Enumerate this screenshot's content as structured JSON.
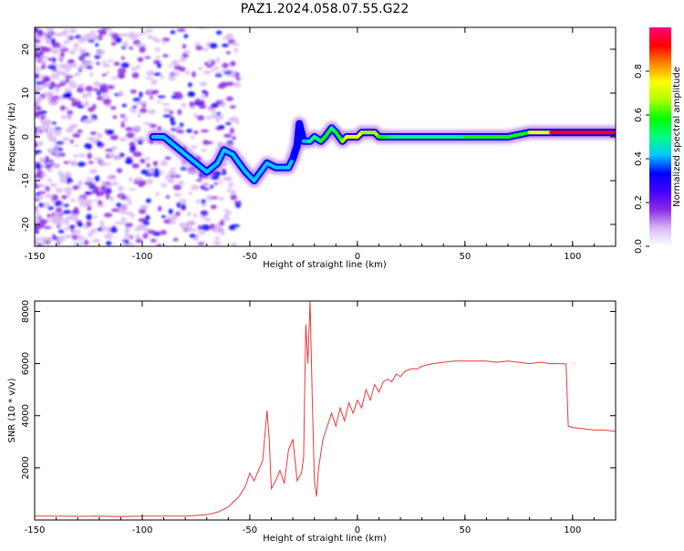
{
  "title": "PAZ1.2024.058.07.55.G22",
  "colors": {
    "snr_line": "#e8393a",
    "colormap": [
      "#ffffff",
      "#d9b8f5",
      "#8a2be2",
      "#4400ff",
      "#0000ff",
      "#00c8ff",
      "#00ff7f",
      "#00ff00",
      "#aaff00",
      "#ffff00",
      "#ff8800",
      "#ff0000",
      "#ff0080"
    ]
  },
  "chart_data": [
    {
      "type": "heatmap",
      "xlabel": "Height of straight line (km)",
      "ylabel": "Frequency (Hz)",
      "xlim": [
        -150,
        120
      ],
      "ylim": [
        -25,
        25
      ],
      "xticks": [
        -150,
        -100,
        -50,
        0,
        50,
        100
      ],
      "yticks": [
        -20,
        -10,
        0,
        10,
        20
      ],
      "colorbar": {
        "label": "Normalized spectral amplitude",
        "range": [
          0,
          1
        ],
        "ticks": [
          0.0,
          0.2,
          0.4,
          0.6,
          0.8
        ]
      },
      "ridge": {
        "x": [
          -95,
          -90,
          -85,
          -80,
          -75,
          -70,
          -65,
          -62,
          -58,
          -55,
          -52,
          -50,
          -48,
          -45,
          -42,
          -38,
          -35,
          -32,
          -30,
          -28,
          -27,
          -25,
          -22,
          -20,
          -17,
          -15,
          -12,
          -10,
          -7,
          -5,
          -2,
          0,
          2,
          5,
          8,
          10,
          15,
          20,
          30,
          40,
          50,
          60,
          70,
          80,
          90,
          100,
          110,
          120
        ],
        "y": [
          0,
          0,
          -2,
          -4,
          -6,
          -8,
          -6,
          -3,
          -4,
          -6,
          -8,
          -9,
          -10,
          -8,
          -6,
          -7,
          -7,
          -7,
          -5,
          -2,
          3,
          -1,
          -1,
          0,
          -1,
          0,
          2,
          1,
          -1,
          0,
          0,
          0,
          1,
          1,
          1,
          0,
          0,
          0,
          0,
          0,
          0,
          0,
          0,
          1,
          1,
          1,
          1,
          1
        ],
        "amp": [
          0.35,
          0.4,
          0.45,
          0.45,
          0.45,
          0.4,
          0.35,
          0.4,
          0.4,
          0.45,
          0.45,
          0.45,
          0.4,
          0.4,
          0.4,
          0.45,
          0.45,
          0.45,
          0.35,
          0.35,
          0.3,
          0.4,
          0.5,
          0.45,
          0.55,
          0.6,
          0.55,
          0.5,
          0.6,
          0.75,
          0.7,
          0.75,
          0.7,
          0.7,
          0.65,
          0.6,
          0.55,
          0.5,
          0.5,
          0.5,
          0.55,
          0.55,
          0.55,
          0.6,
          0.9,
          0.9,
          0.9,
          0.9
        ]
      }
    },
    {
      "type": "line",
      "xlabel": "Height of straight line (km)",
      "ylabel": "SNR (10 * v/v)",
      "xlim": [
        -150,
        120
      ],
      "ylim": [
        0,
        8400
      ],
      "xticks": [
        -150,
        -100,
        -50,
        0,
        50,
        100
      ],
      "yticks": [
        2000,
        4000,
        6000,
        8000
      ],
      "series": [
        {
          "x": [
            -150,
            -140,
            -130,
            -120,
            -110,
            -100,
            -90,
            -80,
            -70,
            -65,
            -60,
            -55,
            -52,
            -50,
            -48,
            -46,
            -44,
            -42,
            -41,
            -40,
            -38,
            -36,
            -34,
            -32,
            -30,
            -28,
            -26,
            -25,
            -24,
            -23,
            -22,
            -21,
            -20,
            -19,
            -18,
            -16,
            -14,
            -12,
            -10,
            -8,
            -6,
            -4,
            -2,
            0,
            2,
            4,
            6,
            8,
            10,
            12,
            14,
            16,
            18,
            20,
            22,
            25,
            28,
            30,
            35,
            40,
            45,
            50,
            55,
            60,
            65,
            70,
            75,
            80,
            85,
            90,
            95,
            97,
            98,
            100,
            105,
            110,
            115,
            120
          ],
          "y": [
            150,
            150,
            140,
            150,
            130,
            150,
            150,
            150,
            200,
            300,
            500,
            900,
            1300,
            1800,
            1500,
            1900,
            2300,
            4200,
            3100,
            1200,
            1500,
            1900,
            1400,
            2700,
            3100,
            1500,
            1800,
            2400,
            7500,
            6000,
            8400,
            4800,
            1500,
            900,
            2000,
            3100,
            3600,
            4100,
            3600,
            4300,
            3800,
            4500,
            4100,
            4600,
            4300,
            5000,
            4600,
            5200,
            4900,
            5300,
            5400,
            5300,
            5600,
            5500,
            5700,
            5800,
            5800,
            5900,
            6000,
            6050,
            6100,
            6100,
            6100,
            6100,
            6050,
            6100,
            6050,
            6000,
            6050,
            6000,
            6000,
            5980,
            3600,
            3550,
            3500,
            3450,
            3450,
            3400
          ]
        }
      ]
    }
  ]
}
